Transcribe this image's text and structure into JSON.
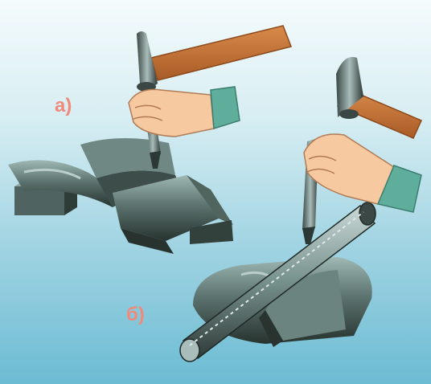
{
  "figure": {
    "label_a": "а)",
    "label_b": "б)"
  },
  "colors": {
    "background_top": "#f4fbfc",
    "background_bottom": "#6cbcd3",
    "metal_dark": "#2f3e3c",
    "metal_light": "#8aa6a3",
    "handle": "#c9773a",
    "skin": "#f7c9a0",
    "cuff": "#5fae9c",
    "label": "#f08a7a"
  }
}
